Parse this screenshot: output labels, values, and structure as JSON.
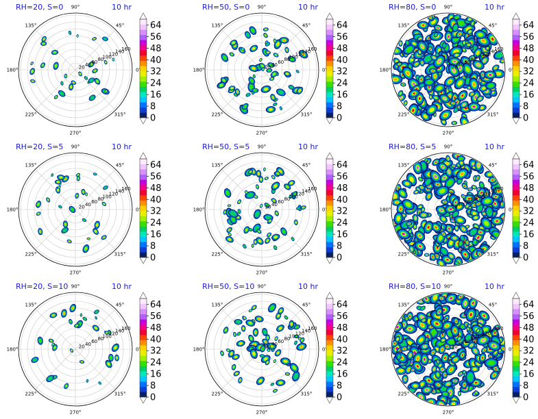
{
  "chart_data": [
    {
      "type": "heatmap",
      "projection": "polar",
      "title": "RH=20, S=0",
      "subtitle": "10 hr",
      "rh": 20,
      "s": 0,
      "coverage_fraction": 0.05,
      "theta_tick_labels": [
        "0°",
        "45°",
        "90°",
        "135°",
        "180°",
        "225°",
        "270°",
        "315°"
      ],
      "r_tick_labels": [
        "20",
        "40",
        "60",
        "80",
        "100",
        "120",
        "140",
        "160"
      ],
      "r_lim": [
        0,
        160
      ],
      "colorbar": {
        "ticks": [
          "0",
          "8",
          "16",
          "24",
          "32",
          "40",
          "48",
          "56",
          "64"
        ],
        "range": [
          0,
          68
        ],
        "extend": "both"
      }
    },
    {
      "type": "heatmap",
      "projection": "polar",
      "title": "RH=50, S=0",
      "subtitle": "10 hr",
      "rh": 50,
      "s": 0,
      "coverage_fraction": 0.15,
      "theta_tick_labels": [
        "0°",
        "45°",
        "90°",
        "135°",
        "180°",
        "225°",
        "270°",
        "315°"
      ],
      "r_tick_labels": [
        "20",
        "40",
        "60",
        "80",
        "100",
        "120",
        "140",
        "160"
      ],
      "r_lim": [
        0,
        160
      ],
      "colorbar": {
        "ticks": [
          "0",
          "8",
          "16",
          "24",
          "32",
          "40",
          "48",
          "56",
          "64"
        ],
        "range": [
          0,
          68
        ],
        "extend": "both"
      }
    },
    {
      "type": "heatmap",
      "projection": "polar",
      "title": "RH=80, S=0",
      "subtitle": "10 hr",
      "rh": 80,
      "s": 0,
      "coverage_fraction": 0.75,
      "theta_tick_labels": [
        "0°",
        "45°",
        "90°",
        "135°",
        "180°",
        "225°",
        "270°",
        "315°"
      ],
      "r_tick_labels": [
        "20",
        "40",
        "60",
        "80",
        "100",
        "120",
        "140",
        "160"
      ],
      "r_lim": [
        0,
        160
      ],
      "colorbar": {
        "ticks": [
          "0",
          "8",
          "16",
          "24",
          "32",
          "40",
          "48",
          "56",
          "64"
        ],
        "range": [
          0,
          68
        ],
        "extend": "both"
      }
    },
    {
      "type": "heatmap",
      "projection": "polar",
      "title": "RH=20, S=5",
      "subtitle": "10 hr",
      "rh": 20,
      "s": 5,
      "coverage_fraction": 0.05,
      "theta_tick_labels": [
        "0°",
        "45°",
        "90°",
        "135°",
        "180°",
        "225°",
        "270°",
        "315°"
      ],
      "r_tick_labels": [
        "20",
        "40",
        "60",
        "80",
        "100",
        "120",
        "140",
        "160"
      ],
      "r_lim": [
        0,
        160
      ],
      "colorbar": {
        "ticks": [
          "0",
          "8",
          "16",
          "24",
          "32",
          "40",
          "48",
          "56",
          "64"
        ],
        "range": [
          0,
          68
        ],
        "extend": "both"
      }
    },
    {
      "type": "heatmap",
      "projection": "polar",
      "title": "RH=50, S=5",
      "subtitle": "10 hr",
      "rh": 50,
      "s": 5,
      "coverage_fraction": 0.15,
      "theta_tick_labels": [
        "0°",
        "45°",
        "90°",
        "135°",
        "180°",
        "225°",
        "270°",
        "315°"
      ],
      "r_tick_labels": [
        "20",
        "40",
        "60",
        "80",
        "100",
        "120",
        "140",
        "160"
      ],
      "r_lim": [
        0,
        160
      ],
      "colorbar": {
        "ticks": [
          "0",
          "8",
          "16",
          "24",
          "32",
          "40",
          "48",
          "56",
          "64"
        ],
        "range": [
          0,
          68
        ],
        "extend": "both"
      }
    },
    {
      "type": "heatmap",
      "projection": "polar",
      "title": "RH=80, S=5",
      "subtitle": "10 hr",
      "rh": 80,
      "s": 5,
      "coverage_fraction": 0.8,
      "theta_tick_labels": [
        "0°",
        "45°",
        "90°",
        "135°",
        "180°",
        "225°",
        "270°",
        "315°"
      ],
      "r_tick_labels": [
        "20",
        "40",
        "60",
        "80",
        "100",
        "120",
        "140",
        "160"
      ],
      "r_lim": [
        0,
        160
      ],
      "colorbar": {
        "ticks": [
          "0",
          "8",
          "16",
          "24",
          "32",
          "40",
          "48",
          "56",
          "64"
        ],
        "range": [
          0,
          68
        ],
        "extend": "both"
      }
    },
    {
      "type": "heatmap",
      "projection": "polar",
      "title": "RH=20, S=10",
      "subtitle": "10 hr",
      "rh": 20,
      "s": 10,
      "coverage_fraction": 0.05,
      "theta_tick_labels": [
        "0°",
        "45°",
        "90°",
        "135°",
        "180°",
        "225°",
        "270°",
        "315°"
      ],
      "r_tick_labels": [
        "20",
        "40",
        "60",
        "80",
        "100",
        "120",
        "140",
        "160"
      ],
      "r_lim": [
        0,
        160
      ],
      "colorbar": {
        "ticks": [
          "0",
          "8",
          "16",
          "24",
          "32",
          "40",
          "48",
          "56",
          "64"
        ],
        "range": [
          0,
          68
        ],
        "extend": "both"
      }
    },
    {
      "type": "heatmap",
      "projection": "polar",
      "title": "RH=50, S=10",
      "subtitle": "10 hr",
      "rh": 50,
      "s": 10,
      "coverage_fraction": 0.15,
      "theta_tick_labels": [
        "0°",
        "45°",
        "90°",
        "135°",
        "180°",
        "225°",
        "270°",
        "315°"
      ],
      "r_tick_labels": [
        "20",
        "40",
        "60",
        "80",
        "100",
        "120",
        "140",
        "160"
      ],
      "r_lim": [
        0,
        160
      ],
      "colorbar": {
        "ticks": [
          "0",
          "8",
          "16",
          "24",
          "32",
          "40",
          "48",
          "56",
          "64"
        ],
        "range": [
          0,
          68
        ],
        "extend": "both"
      }
    },
    {
      "type": "heatmap",
      "projection": "polar",
      "title": "RH=80, S=10",
      "subtitle": "10 hr",
      "rh": 80,
      "s": 10,
      "coverage_fraction": 0.8,
      "theta_tick_labels": [
        "0°",
        "45°",
        "90°",
        "135°",
        "180°",
        "225°",
        "270°",
        "315°"
      ],
      "r_tick_labels": [
        "20",
        "40",
        "60",
        "80",
        "100",
        "120",
        "140",
        "160"
      ],
      "r_lim": [
        0,
        160
      ],
      "colorbar": {
        "ticks": [
          "0",
          "8",
          "16",
          "24",
          "32",
          "40",
          "48",
          "56",
          "64"
        ],
        "range": [
          0,
          68
        ],
        "extend": "both"
      }
    }
  ],
  "colors": {
    "title": "#1a1ad0",
    "grid": "#c8c8c8",
    "colormap": [
      "#082060",
      "#0c3fd6",
      "#0072ff",
      "#00c8ff",
      "#00e8c0",
      "#00d060",
      "#38e000",
      "#a0f000",
      "#e8f000",
      "#ffd200",
      "#ff9000",
      "#ff4400",
      "#f00030",
      "#f0008c",
      "#c800e0",
      "#b060ff",
      "#d890ff",
      "#f0c8ff",
      "#ffeaff"
    ]
  }
}
